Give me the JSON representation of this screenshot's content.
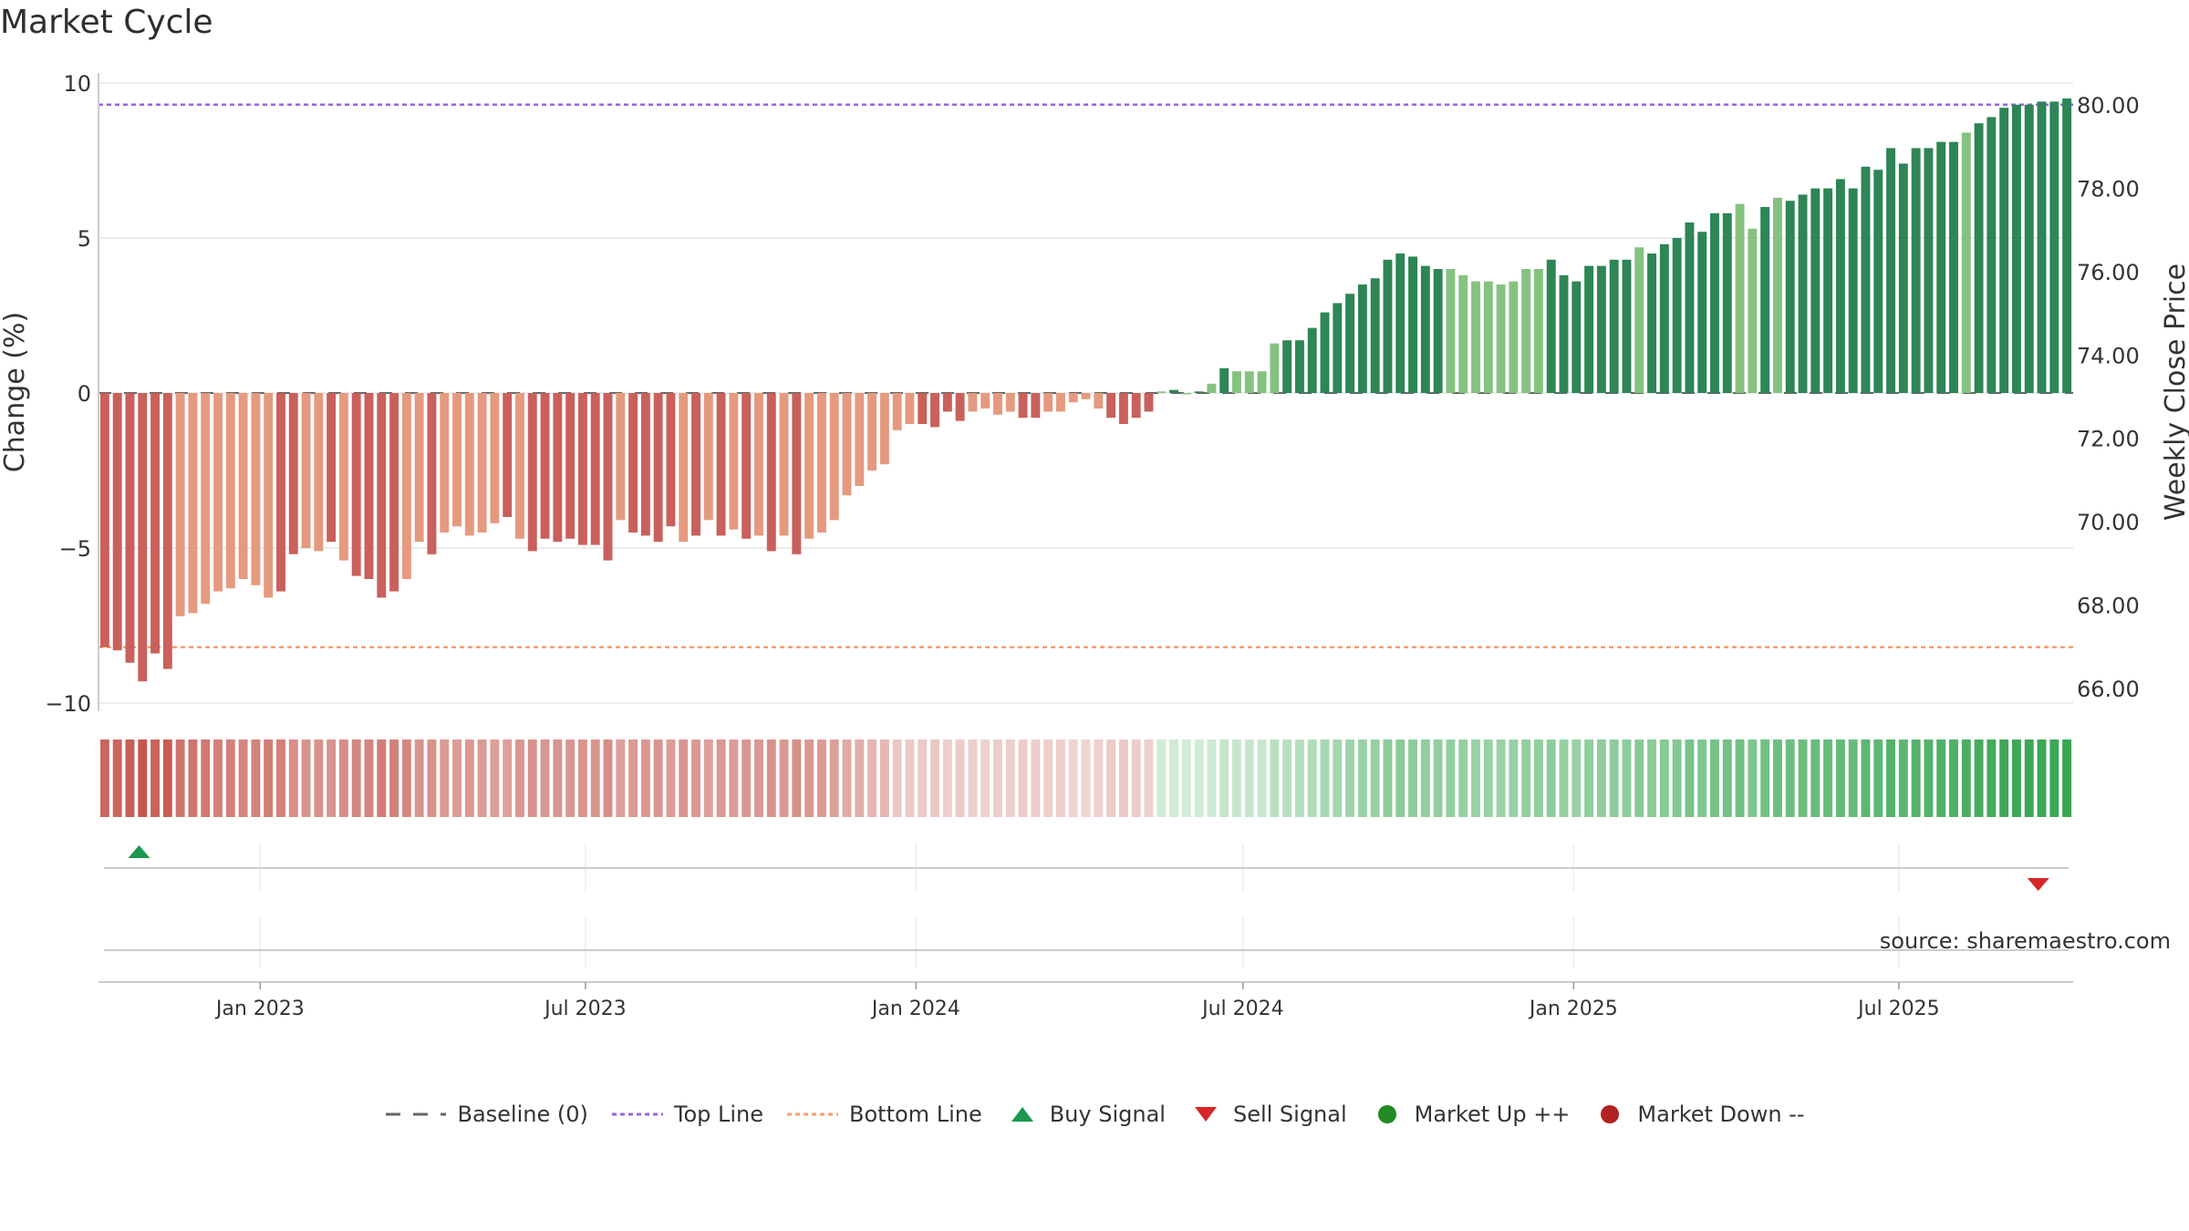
{
  "title": "Market Cycle",
  "source": "source: sharemaestro.com",
  "colors": {
    "down_dark": "#c9605c",
    "down_light": "#e59a7f",
    "up_dark": "#2e8556",
    "up_light": "#86c27f",
    "top_line": "#9966dd",
    "bottom_line": "#f0a070",
    "buy": "#1a9850",
    "sell": "#d62728",
    "market_up": "#228b22",
    "market_down": "#b22222"
  },
  "legend": [
    {
      "label": "Baseline (0)",
      "icon": "dash-line-icon"
    },
    {
      "label": "Top Line",
      "icon": "dotted-purple-line-icon"
    },
    {
      "label": "Bottom Line",
      "icon": "dotted-orange-line-icon"
    },
    {
      "label": "Buy Signal",
      "icon": "triangle-up-icon"
    },
    {
      "label": "Sell Signal",
      "icon": "triangle-down-icon"
    },
    {
      "label": "Market Up ++",
      "icon": "green-dot-icon"
    },
    {
      "label": "Market Down --",
      "icon": "red-dot-icon"
    }
  ],
  "chart_data": {
    "type": "bar",
    "ylabel": "Change (%)",
    "y2label": "Weekly Close Price",
    "ylim": [
      -10,
      10
    ],
    "yticks": [
      10,
      5,
      0,
      -5,
      -10
    ],
    "ytick_labels": [
      "10",
      "5",
      "0",
      "−5",
      "−10"
    ],
    "y2lim": [
      65.95,
      80.85
    ],
    "y2ticks": [
      "80.00",
      "78.00",
      "76.00",
      "74.00",
      "72.00",
      "70.00",
      "68.00",
      "66.00"
    ],
    "x_start": "2022-10-03",
    "x_end": "2025-10-06",
    "xticks": [
      "Jan 2023",
      "Jul 2023",
      "Jan 2024",
      "Jul 2024",
      "Jan 2025",
      "Jul 2025"
    ],
    "xtick_dates": [
      "2023-01-01",
      "2023-07-01",
      "2024-01-01",
      "2024-07-01",
      "2025-01-01",
      "2025-07-01"
    ],
    "top_line": 9.3,
    "bottom_line": -8.2,
    "baseline": 0,
    "grid": true,
    "legend_position": "bottom",
    "values": [
      -8.2,
      -8.3,
      -8.7,
      -9.3,
      -8.4,
      -8.9,
      -7.2,
      -7.1,
      -6.8,
      -6.4,
      -6.3,
      -6.0,
      -6.2,
      -6.6,
      -6.4,
      -5.2,
      -5.0,
      -5.1,
      -4.8,
      -5.4,
      -5.9,
      -6.0,
      -6.6,
      -6.4,
      -6.0,
      -4.8,
      -5.2,
      -4.5,
      -4.3,
      -4.6,
      -4.5,
      -4.2,
      -4.0,
      -4.7,
      -5.1,
      -4.7,
      -4.8,
      -4.7,
      -4.9,
      -4.9,
      -5.4,
      -4.1,
      -4.5,
      -4.6,
      -4.8,
      -4.3,
      -4.8,
      -4.6,
      -4.1,
      -4.6,
      -4.4,
      -4.7,
      -4.6,
      -5.1,
      -4.6,
      -5.2,
      -4.7,
      -4.5,
      -4.1,
      -3.3,
      -3.0,
      -2.5,
      -2.3,
      -1.2,
      -1.0,
      -1.0,
      -1.1,
      -0.6,
      -0.9,
      -0.6,
      -0.5,
      -0.7,
      -0.6,
      -0.8,
      -0.8,
      -0.6,
      -0.6,
      -0.3,
      -0.2,
      -0.5,
      -0.8,
      -1.0,
      -0.8,
      -0.6,
      0.05,
      0.1,
      0.0,
      0.05,
      0.3,
      0.8,
      0.7,
      0.7,
      0.7,
      1.6,
      1.7,
      1.7,
      2.1,
      2.6,
      2.9,
      3.2,
      3.5,
      3.7,
      4.3,
      4.5,
      4.4,
      4.1,
      4.0,
      4.0,
      3.8,
      3.6,
      3.6,
      3.5,
      3.6,
      4.0,
      4.0,
      4.3,
      3.8,
      3.6,
      4.1,
      4.1,
      4.3,
      4.3,
      4.7,
      4.5,
      4.8,
      5.0,
      5.5,
      5.2,
      5.8,
      5.8,
      6.1,
      5.3,
      6.0,
      6.3,
      6.2,
      6.4,
      6.6,
      6.6,
      6.9,
      6.6,
      7.3,
      7.2,
      7.9,
      7.4,
      7.9,
      7.9,
      8.1,
      8.1,
      8.4,
      8.7,
      8.9,
      9.2,
      9.3,
      9.3,
      9.4,
      9.4,
      9.5
    ],
    "bar_shades": "DDDDDDLLLLLLLLDDLLDLDDDDLLDLLLLLDLDDDDDDDLDDDDLDLDLDLDLDLLLLLLLLLDDDDLLLLDDLLLLLDDDDLDLDLDLLLLDDDDDDDDDDDDDLLLLLLLLDDDDDDDLDDDDDDDLLDLDDDDDDDDDDDDDDLDDDDDDDDDDDD",
    "signals": [
      {
        "type": "buy",
        "index": 2
      },
      {
        "type": "sell",
        "index": 153
      }
    ]
  }
}
